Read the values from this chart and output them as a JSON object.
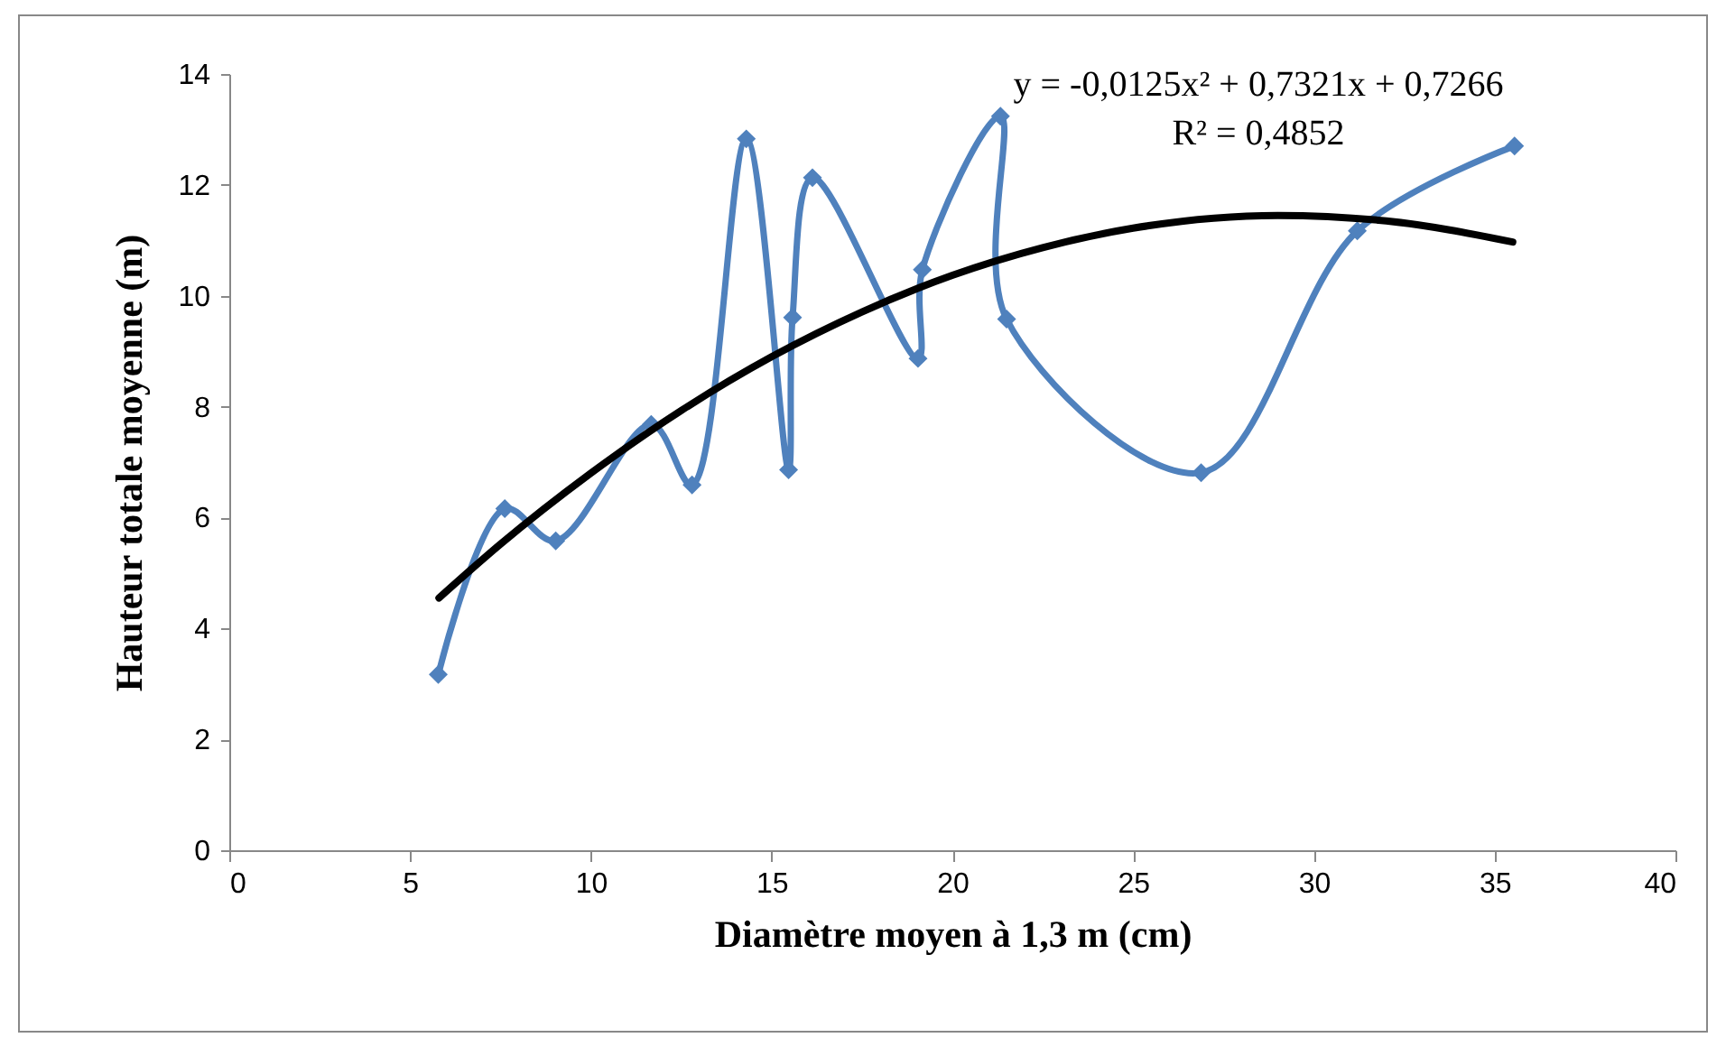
{
  "chart_data": {
    "type": "line",
    "xlabel": "Diamètre moyen à 1,3 m (cm)",
    "ylabel": "Hauteur totale moyenne (m)",
    "xlim": [
      0,
      40
    ],
    "xticks": [
      0,
      5,
      10,
      15,
      20,
      25,
      30,
      35,
      40
    ],
    "ylim": [
      0,
      14
    ],
    "yticks": [
      0,
      2,
      4,
      6,
      8,
      10,
      12,
      14
    ],
    "grid": false,
    "annotations": [
      "y = -0,0125x² + 0,7321x + 0,7266",
      "R² = 0,4852"
    ],
    "series": [
      {
        "type": "line",
        "color": "#4f81bd",
        "marker": "diamond",
        "x": [
          5.78,
          7.62,
          9.03,
          11.67,
          12.8,
          14.3,
          15.47,
          15.58,
          16.13,
          19.05,
          19.17,
          21.33,
          21.5,
          26.88,
          31.2,
          35.55
        ],
        "values": [
          3.17,
          6.16,
          5.58,
          7.68,
          6.59,
          12.83,
          6.86,
          9.61,
          12.13,
          8.87,
          10.47,
          13.24,
          9.58,
          6.81,
          11.17,
          12.7
        ]
      },
      {
        "type": "line",
        "color": "#000000",
        "marker": "none",
        "x": [
          5.8,
          7.5,
          10,
          12.5,
          15,
          17.5,
          20,
          22.5,
          25,
          29,
          32,
          35.5
        ],
        "values": [
          4.55,
          5.52,
          6.8,
          7.93,
          8.9,
          9.71,
          10.37,
          10.87,
          11.22,
          11.45,
          11.35,
          10.97
        ]
      }
    ]
  }
}
